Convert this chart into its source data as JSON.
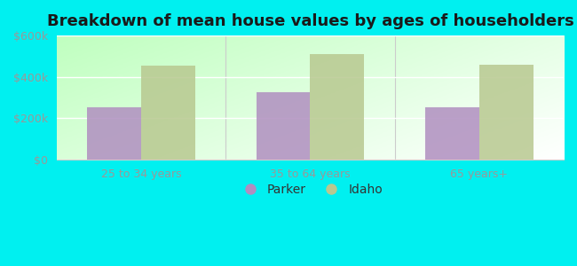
{
  "title": "Breakdown of mean house values by ages of householders",
  "categories": [
    "25 to 34 years",
    "35 to 64 years",
    "65 years+"
  ],
  "parker_values": [
    255000,
    325000,
    255000
  ],
  "idaho_values": [
    455000,
    510000,
    460000
  ],
  "ylim": [
    0,
    600000
  ],
  "yticks": [
    0,
    200000,
    400000,
    600000
  ],
  "ytick_labels": [
    "$0",
    "$200k",
    "$400k",
    "$600k"
  ],
  "parker_color": "#b08ec0",
  "idaho_color": "#b8c890",
  "bar_width": 0.32,
  "background_color": "#00f0f0",
  "legend_parker": "Parker",
  "legend_idaho": "Idaho",
  "title_fontsize": 13,
  "tick_fontsize": 9,
  "legend_fontsize": 10
}
